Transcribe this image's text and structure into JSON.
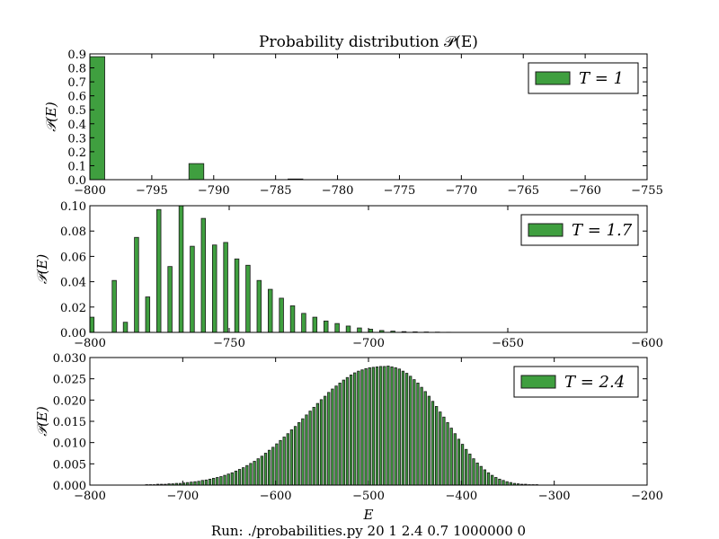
{
  "figure": {
    "title": "Probability distribution 𝒫(E)",
    "footer": "Run: ./probabilities.py 20 1 2.4 0.7 1000000 0",
    "xlabel": "E",
    "bar_color": "#3f9f3f",
    "edge_color": "#1a1a1a"
  },
  "chart_data": [
    {
      "type": "bar",
      "ylabel": "𝒫(E)",
      "legend": "T = 1",
      "legend_position": "top-right",
      "xlim": [
        -800,
        -755
      ],
      "ylim": [
        0,
        0.9
      ],
      "xticks": [
        -800,
        -795,
        -790,
        -785,
        -780,
        -775,
        -770,
        -765,
        -760,
        -755
      ],
      "xtick_labels": [
        "−800",
        "−795",
        "−790",
        "−785",
        "−780",
        "−775",
        "−770",
        "−765",
        "−760",
        "−755"
      ],
      "yticks": [
        0,
        0.1,
        0.2,
        0.3,
        0.4,
        0.5,
        0.6,
        0.7,
        0.8,
        0.9
      ],
      "ytick_labels": [
        "0.0",
        "0.1",
        "0.2",
        "0.3",
        "0.4",
        "0.5",
        "0.6",
        "0.7",
        "0.8",
        "0.9"
      ],
      "bar_width": 1.2,
      "x": [
        -800,
        -792,
        -784
      ],
      "values": [
        0.88,
        0.115,
        0.005
      ]
    },
    {
      "type": "bar",
      "ylabel": "𝒫(E)",
      "legend": "T = 1.7",
      "legend_position": "top-right",
      "xlim": [
        -800,
        -600
      ],
      "ylim": [
        0,
        0.1
      ],
      "xticks": [
        -800,
        -750,
        -700,
        -650,
        -600
      ],
      "xtick_labels": [
        "−800",
        "−750",
        "−700",
        "−650",
        "−600"
      ],
      "yticks": [
        0,
        0.02,
        0.04,
        0.06,
        0.08,
        0.1
      ],
      "ytick_labels": [
        "0.00",
        "0.02",
        "0.04",
        "0.06",
        "0.08",
        "0.10"
      ],
      "bar_width": 1.5,
      "x": [
        -800,
        -792,
        -788,
        -784,
        -780,
        -776,
        -772,
        -768,
        -764,
        -760,
        -756,
        -752,
        -748,
        -744,
        -740,
        -736,
        -732,
        -728,
        -724,
        -720,
        -716,
        -712,
        -708,
        -704,
        -700,
        -696,
        -692,
        -688,
        -684,
        -680,
        -676,
        -672
      ],
      "values": [
        0.012,
        0.041,
        0.008,
        0.075,
        0.028,
        0.097,
        0.052,
        0.1,
        0.068,
        0.09,
        0.069,
        0.071,
        0.058,
        0.053,
        0.041,
        0.034,
        0.027,
        0.021,
        0.015,
        0.012,
        0.009,
        0.007,
        0.005,
        0.0035,
        0.0025,
        0.0015,
        0.001,
        0.0006,
        0.0004,
        0.0003,
        0.0002,
        0.0001
      ]
    },
    {
      "type": "bar",
      "ylabel": "𝒫(E)",
      "legend": "T = 2.4",
      "legend_position": "top-right",
      "xlim": [
        -800,
        -200
      ],
      "ylim": [
        0,
        0.03
      ],
      "xticks": [
        -800,
        -700,
        -600,
        -500,
        -400,
        -300,
        -200
      ],
      "xtick_labels": [
        "−800",
        "−700",
        "−600",
        "−500",
        "−400",
        "−300",
        "−200"
      ],
      "yticks": [
        0,
        0.005,
        0.01,
        0.015,
        0.02,
        0.025,
        0.03
      ],
      "ytick_labels": [
        "0.000",
        "0.005",
        "0.010",
        "0.015",
        "0.020",
        "0.025",
        "0.030"
      ],
      "bar_width": 2.4,
      "x": [
        -740,
        -736,
        -732,
        -728,
        -724,
        -720,
        -716,
        -712,
        -708,
        -704,
        -700,
        -696,
        -692,
        -688,
        -684,
        -680,
        -676,
        -672,
        -668,
        -664,
        -660,
        -656,
        -652,
        -648,
        -644,
        -640,
        -636,
        -632,
        -628,
        -624,
        -620,
        -616,
        -612,
        -608,
        -604,
        -600,
        -596,
        -592,
        -588,
        -584,
        -580,
        -576,
        -572,
        -568,
        -564,
        -560,
        -556,
        -552,
        -548,
        -544,
        -540,
        -536,
        -532,
        -528,
        -524,
        -520,
        -516,
        -512,
        -508,
        -504,
        -500,
        -496,
        -492,
        -488,
        -484,
        -480,
        -476,
        -472,
        -468,
        -464,
        -460,
        -456,
        -452,
        -448,
        -444,
        -440,
        -436,
        -432,
        -428,
        -424,
        -420,
        -416,
        -412,
        -408,
        -404,
        -400,
        -396,
        -392,
        -388,
        -384,
        -380,
        -376,
        -372,
        -368,
        -364,
        -360,
        -356,
        -352,
        -348,
        -344,
        -340,
        -336,
        -332,
        -328,
        -324,
        -320
      ],
      "values": [
        0.0001,
        0.0001,
        0.0001,
        0.0002,
        0.0002,
        0.0002,
        0.0003,
        0.0003,
        0.0004,
        0.0004,
        0.0005,
        0.0006,
        0.0007,
        0.0008,
        0.0009,
        0.0011,
        0.0012,
        0.0014,
        0.0016,
        0.0018,
        0.002,
        0.0023,
        0.0026,
        0.0029,
        0.0033,
        0.0037,
        0.0041,
        0.0046,
        0.0051,
        0.0056,
        0.0062,
        0.0068,
        0.0075,
        0.0082,
        0.0089,
        0.0097,
        0.0105,
        0.0113,
        0.0121,
        0.013,
        0.0138,
        0.0147,
        0.0156,
        0.0165,
        0.0174,
        0.0183,
        0.0192,
        0.0201,
        0.0209,
        0.0218,
        0.0226,
        0.0233,
        0.024,
        0.0247,
        0.0253,
        0.0259,
        0.0264,
        0.0268,
        0.0271,
        0.0274,
        0.0276,
        0.0277,
        0.0278,
        0.0279,
        0.0279,
        0.028,
        0.0278,
        0.0276,
        0.0273,
        0.0268,
        0.0263,
        0.0256,
        0.0248,
        0.024,
        0.023,
        0.022,
        0.0209,
        0.0197,
        0.0185,
        0.0172,
        0.016,
        0.0147,
        0.0134,
        0.0121,
        0.0108,
        0.0096,
        0.0084,
        0.0073,
        0.0062,
        0.0052,
        0.0044,
        0.0036,
        0.0029,
        0.0023,
        0.0018,
        0.0014,
        0.0011,
        0.0008,
        0.0006,
        0.0004,
        0.0003,
        0.0002,
        0.0002,
        0.0001,
        0.0001,
        0.0001
      ]
    }
  ]
}
